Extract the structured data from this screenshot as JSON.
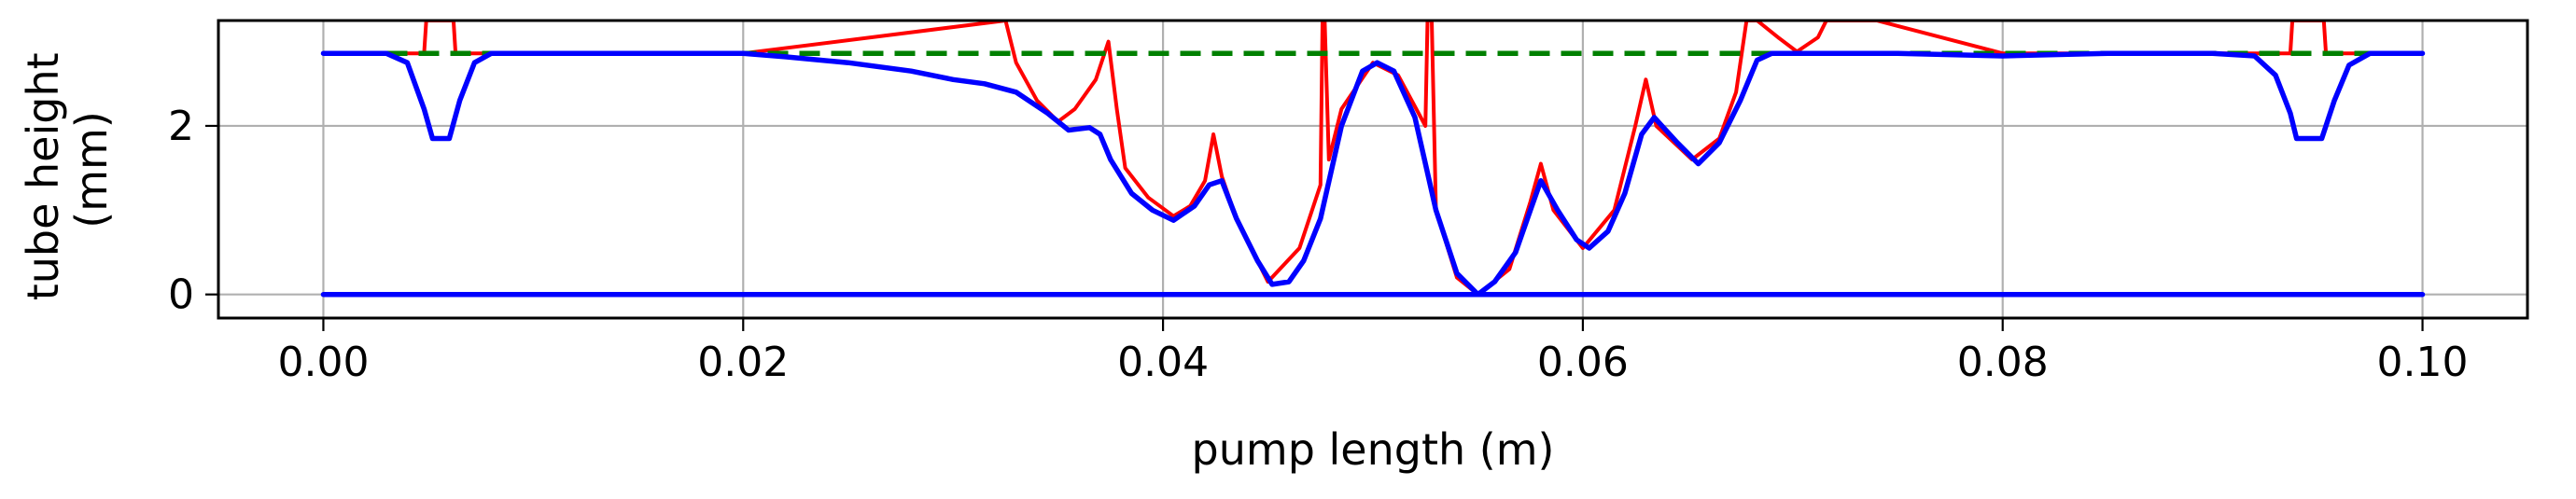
{
  "chart_data": {
    "type": "line",
    "title": "",
    "xlabel": "pump length (m)",
    "ylabel": "tube height\n(mm)",
    "xlim": [
      -0.005,
      0.105
    ],
    "ylim": [
      -0.28,
      3.25
    ],
    "xticks": [
      0.0,
      0.02,
      0.04,
      0.06,
      0.08,
      0.1
    ],
    "xtick_labels": [
      "0.00",
      "0.02",
      "0.04",
      "0.06",
      "0.08",
      "0.10"
    ],
    "yticks": [
      0,
      2
    ],
    "ytick_labels": [
      "0",
      "2"
    ],
    "grid": true,
    "legend": false,
    "series": [
      {
        "color": "#ff0000",
        "style": "solid",
        "points": [
          [
            0.0,
            2.86
          ],
          [
            0.003,
            2.86
          ],
          [
            0.004,
            2.86
          ],
          [
            0.0048,
            2.86
          ],
          [
            0.0049,
            3.25
          ],
          [
            0.0062,
            3.25
          ],
          [
            0.0063,
            2.86
          ],
          [
            0.008,
            2.86
          ],
          [
            0.02,
            2.86
          ],
          [
            0.0325,
            3.25
          ],
          [
            0.033,
            2.75
          ],
          [
            0.034,
            2.3
          ],
          [
            0.035,
            2.05
          ],
          [
            0.0358,
            2.2
          ],
          [
            0.0368,
            2.55
          ],
          [
            0.0374,
            3.0
          ],
          [
            0.0378,
            2.2
          ],
          [
            0.0382,
            1.5
          ],
          [
            0.0393,
            1.15
          ],
          [
            0.0405,
            0.93
          ],
          [
            0.0413,
            1.05
          ],
          [
            0.042,
            1.35
          ],
          [
            0.0424,
            1.9
          ],
          [
            0.0428,
            1.4
          ],
          [
            0.0435,
            0.9
          ],
          [
            0.045,
            0.15
          ],
          [
            0.0465,
            0.55
          ],
          [
            0.0475,
            1.3
          ],
          [
            0.0476,
            3.25
          ],
          [
            0.0477,
            3.25
          ],
          [
            0.0479,
            1.6
          ],
          [
            0.0485,
            2.2
          ],
          [
            0.05,
            2.75
          ],
          [
            0.0512,
            2.6
          ],
          [
            0.0525,
            2.0
          ],
          [
            0.0526,
            3.25
          ],
          [
            0.0528,
            3.25
          ],
          [
            0.053,
            1.0
          ],
          [
            0.054,
            0.2
          ],
          [
            0.055,
            0.0
          ],
          [
            0.0565,
            0.3
          ],
          [
            0.0575,
            1.1
          ],
          [
            0.058,
            1.55
          ],
          [
            0.0586,
            1.0
          ],
          [
            0.06,
            0.55
          ],
          [
            0.0615,
            1.0
          ],
          [
            0.0625,
            2.0
          ],
          [
            0.063,
            2.55
          ],
          [
            0.0635,
            2.0
          ],
          [
            0.0652,
            1.6
          ],
          [
            0.0665,
            1.85
          ],
          [
            0.0673,
            2.4
          ],
          [
            0.0678,
            3.25
          ],
          [
            0.0683,
            3.25
          ],
          [
            0.0693,
            3.05
          ],
          [
            0.0702,
            2.88
          ],
          [
            0.0712,
            3.05
          ],
          [
            0.0716,
            3.25
          ],
          [
            0.074,
            3.25
          ],
          [
            0.08,
            2.86
          ],
          [
            0.09,
            2.86
          ],
          [
            0.0937,
            2.86
          ],
          [
            0.0938,
            3.25
          ],
          [
            0.0953,
            3.25
          ],
          [
            0.0954,
            2.86
          ],
          [
            0.1,
            2.86
          ]
        ]
      },
      {
        "color": "#008000",
        "style": "dashed",
        "points": [
          [
            0.0,
            2.86
          ],
          [
            0.1,
            2.86
          ]
        ]
      },
      {
        "color": "#0000ff",
        "style": "solid",
        "points": [
          [
            0.0,
            2.86
          ],
          [
            0.003,
            2.86
          ],
          [
            0.004,
            2.75
          ],
          [
            0.0048,
            2.2
          ],
          [
            0.0052,
            1.85
          ],
          [
            0.006,
            1.85
          ],
          [
            0.0065,
            2.3
          ],
          [
            0.0072,
            2.75
          ],
          [
            0.008,
            2.86
          ],
          [
            0.02,
            2.86
          ],
          [
            0.022,
            2.82
          ],
          [
            0.025,
            2.75
          ],
          [
            0.028,
            2.65
          ],
          [
            0.03,
            2.55
          ],
          [
            0.0315,
            2.5
          ],
          [
            0.033,
            2.4
          ],
          [
            0.0345,
            2.15
          ],
          [
            0.0355,
            1.95
          ],
          [
            0.0365,
            1.98
          ],
          [
            0.037,
            1.9
          ],
          [
            0.0375,
            1.6
          ],
          [
            0.0385,
            1.2
          ],
          [
            0.0395,
            1.0
          ],
          [
            0.0405,
            0.88
          ],
          [
            0.0415,
            1.05
          ],
          [
            0.0422,
            1.3
          ],
          [
            0.0428,
            1.35
          ],
          [
            0.0435,
            0.9
          ],
          [
            0.0445,
            0.4
          ],
          [
            0.0452,
            0.12
          ],
          [
            0.046,
            0.15
          ],
          [
            0.0467,
            0.4
          ],
          [
            0.0475,
            0.9
          ],
          [
            0.0485,
            2.0
          ],
          [
            0.0495,
            2.65
          ],
          [
            0.0502,
            2.75
          ],
          [
            0.051,
            2.65
          ],
          [
            0.052,
            2.1
          ],
          [
            0.053,
            1.0
          ],
          [
            0.054,
            0.25
          ],
          [
            0.055,
            0.0
          ],
          [
            0.0558,
            0.15
          ],
          [
            0.0568,
            0.5
          ],
          [
            0.0575,
            1.0
          ],
          [
            0.058,
            1.35
          ],
          [
            0.0588,
            1.0
          ],
          [
            0.0597,
            0.65
          ],
          [
            0.0603,
            0.55
          ],
          [
            0.0612,
            0.75
          ],
          [
            0.062,
            1.2
          ],
          [
            0.0628,
            1.9
          ],
          [
            0.0634,
            2.1
          ],
          [
            0.0645,
            1.8
          ],
          [
            0.0655,
            1.55
          ],
          [
            0.0665,
            1.8
          ],
          [
            0.0675,
            2.3
          ],
          [
            0.0683,
            2.78
          ],
          [
            0.069,
            2.86
          ],
          [
            0.075,
            2.86
          ],
          [
            0.08,
            2.83
          ],
          [
            0.085,
            2.86
          ],
          [
            0.09,
            2.86
          ],
          [
            0.092,
            2.83
          ],
          [
            0.093,
            2.6
          ],
          [
            0.0937,
            2.15
          ],
          [
            0.094,
            1.85
          ],
          [
            0.0952,
            1.85
          ],
          [
            0.0958,
            2.3
          ],
          [
            0.0965,
            2.72
          ],
          [
            0.0975,
            2.86
          ],
          [
            0.1,
            2.86
          ]
        ]
      },
      {
        "color": "#0000ff",
        "style": "solid",
        "points": [
          [
            0.0,
            0.0
          ],
          [
            0.1,
            0.0
          ]
        ]
      }
    ]
  }
}
